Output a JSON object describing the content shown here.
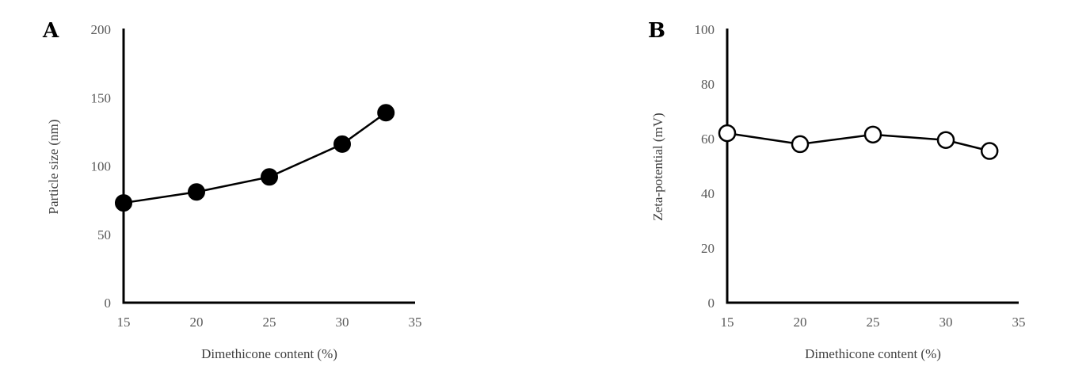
{
  "chart_data": [
    {
      "type": "line",
      "panel": "A",
      "xlabel": "Dimethicone content (%)",
      "ylabel": "Particle size (nm)",
      "xlim": [
        15,
        35
      ],
      "ylim": [
        0,
        200
      ],
      "xticks": [
        15,
        20,
        25,
        30,
        35
      ],
      "yticks": [
        0,
        50,
        100,
        150,
        200
      ],
      "grid": false,
      "marker": "filled-circle",
      "color": "#000000",
      "series": [
        {
          "x": [
            15,
            20,
            25,
            30,
            33
          ],
          "values": [
            73,
            81,
            92,
            116,
            139
          ]
        }
      ]
    },
    {
      "type": "line",
      "panel": "B",
      "xlabel": "Dimethicone content (%)",
      "ylabel": "Zeta-potential (mV)",
      "xlim": [
        15,
        35
      ],
      "ylim": [
        0,
        100
      ],
      "xticks": [
        15,
        20,
        25,
        30,
        35
      ],
      "yticks": [
        0,
        20,
        40,
        60,
        80,
        100
      ],
      "grid": false,
      "marker": "open-circle",
      "color": "#000000",
      "series": [
        {
          "x": [
            15,
            20,
            25,
            30,
            33
          ],
          "values": [
            62,
            58,
            61.5,
            59.5,
            55.5
          ]
        }
      ]
    }
  ]
}
